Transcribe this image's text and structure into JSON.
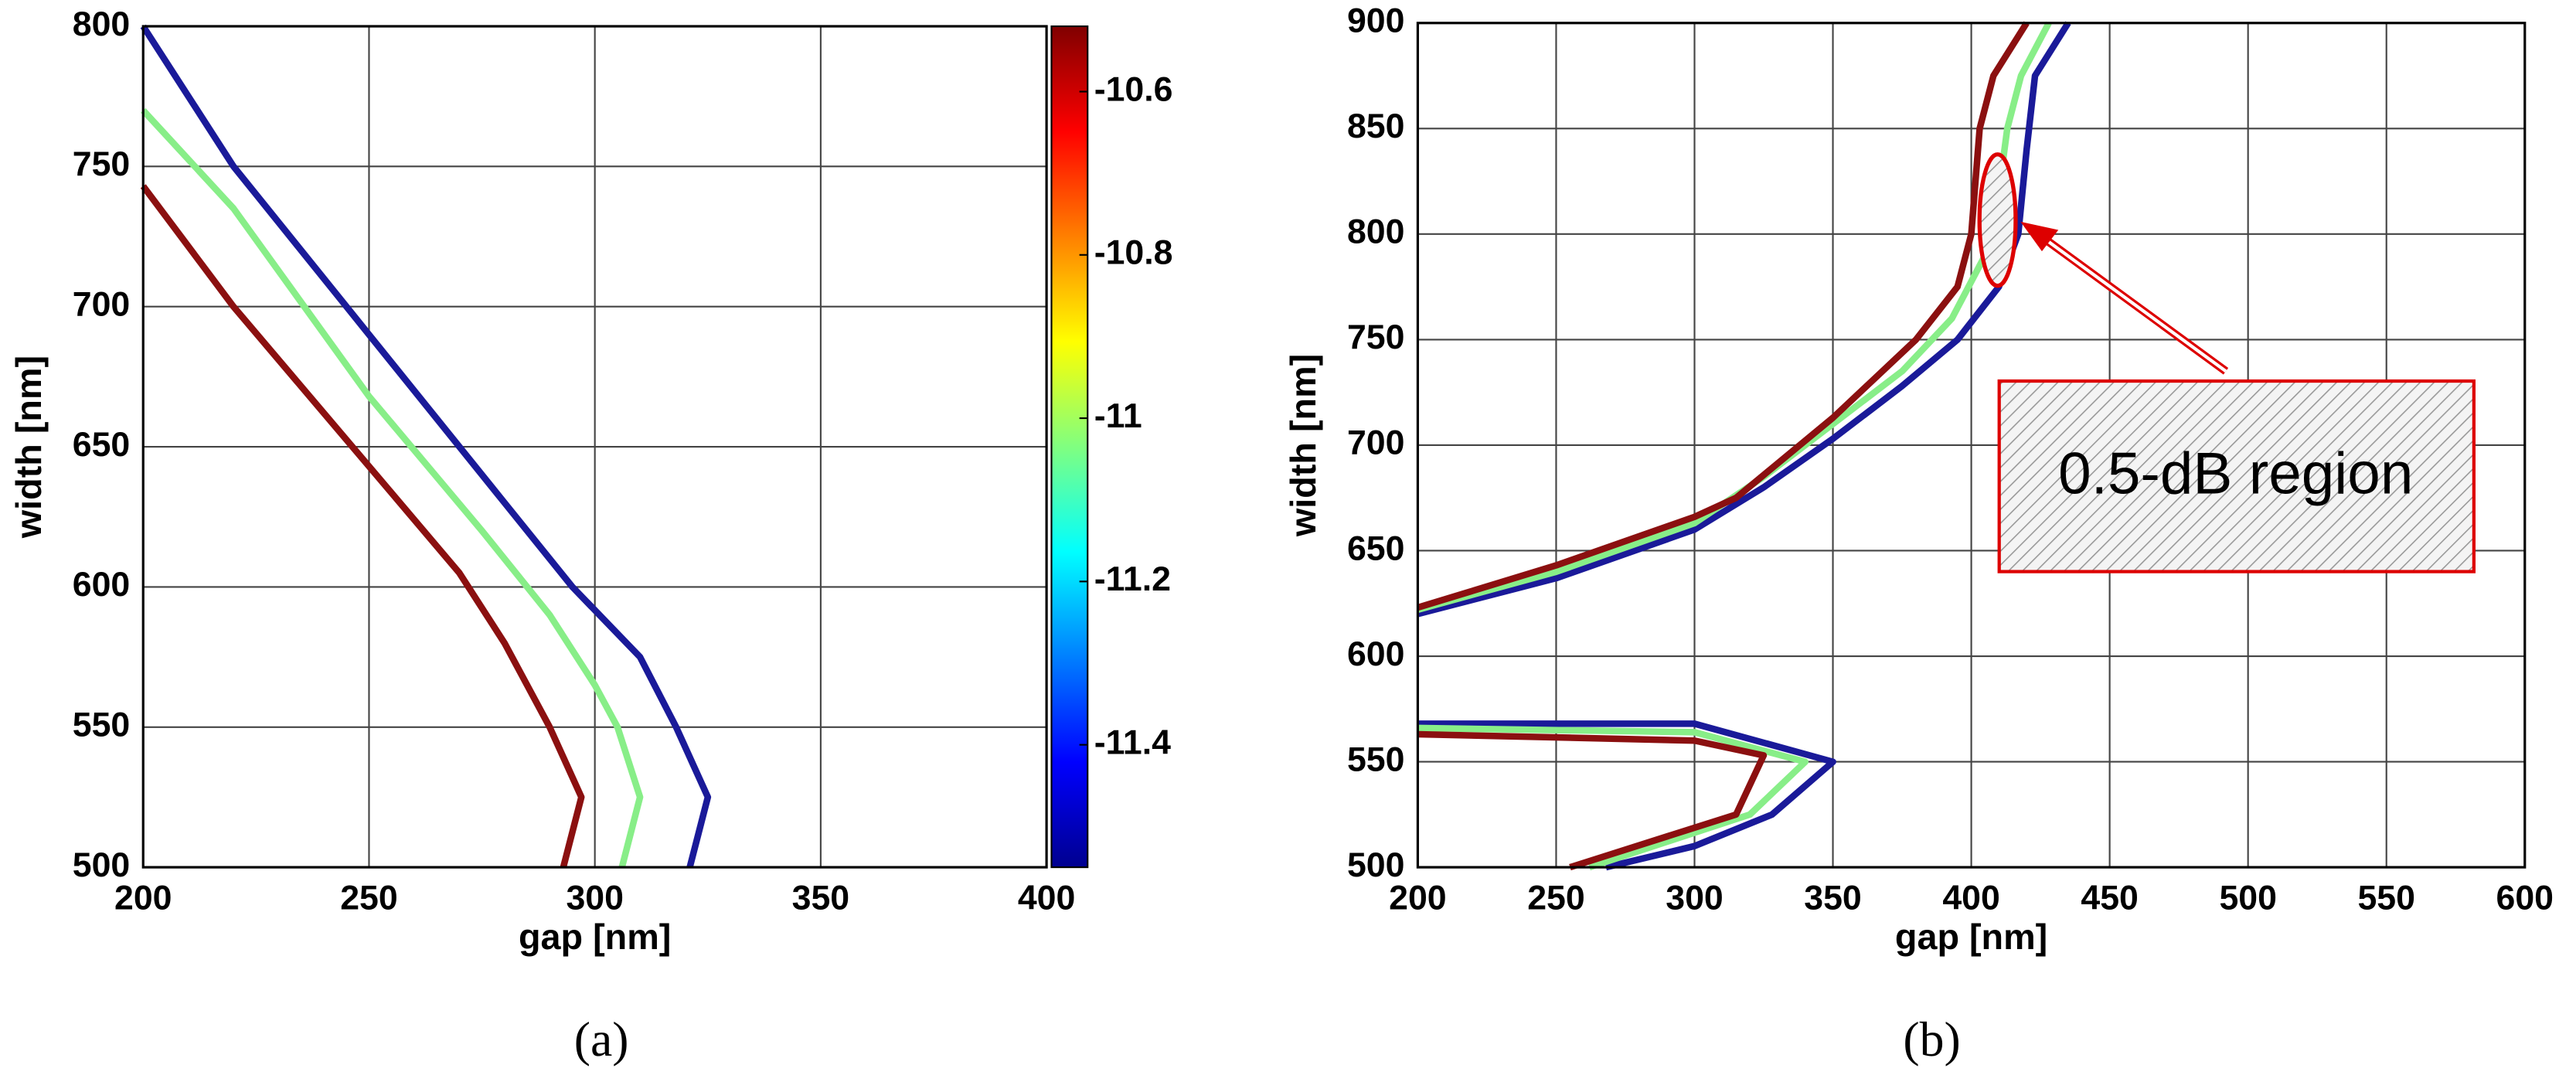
{
  "chart_data": [
    {
      "type": "line",
      "panel_label": "(a)",
      "x_label": "gap [nm]",
      "y_label": "width [nm]",
      "xlim": [
        200,
        400
      ],
      "ylim": [
        500,
        800
      ],
      "xticks": [
        200,
        250,
        300,
        350,
        400
      ],
      "yticks": [
        500,
        550,
        600,
        650,
        700,
        750,
        800
      ],
      "grid": true,
      "colorbar": {
        "lim": [
          -11.55,
          -10.52
        ],
        "ticks": [
          -10.6,
          -10.8,
          -11,
          -11.2,
          -11.4
        ]
      },
      "series": [
        {
          "color": "#1a1a99",
          "x": [
            200,
            220,
            250,
            280,
            295,
            310,
            318,
            325,
            321
          ],
          "values": [
            800,
            750,
            690,
            630,
            600,
            575,
            550,
            525,
            500
          ]
        },
        {
          "color": "#88ee88",
          "x": [
            200,
            220,
            250,
            275,
            290,
            300,
            305,
            310,
            306
          ],
          "values": [
            770,
            735,
            668,
            620,
            590,
            565,
            550,
            525,
            500
          ]
        },
        {
          "color": "#8b1010",
          "x": [
            200,
            220,
            250,
            270,
            280,
            290,
            297,
            293
          ],
          "values": [
            743,
            700,
            643,
            605,
            580,
            550,
            525,
            500
          ]
        }
      ]
    },
    {
      "type": "line",
      "panel_label": "(b)",
      "x_label": "gap [nm]",
      "y_label": "width [nm]",
      "xlim": [
        200,
        600
      ],
      "ylim": [
        500,
        900
      ],
      "xticks": [
        200,
        250,
        300,
        350,
        400,
        450,
        500,
        550,
        600
      ],
      "yticks": [
        500,
        550,
        600,
        650,
        700,
        750,
        800,
        850,
        900
      ],
      "grid": true,
      "annotation": "0.5-dB region",
      "series": [
        {
          "color": "#1a1a99",
          "x": [
            200,
            250,
            300,
            325,
            350,
            375,
            395,
            410,
            417,
            420,
            423,
            435
          ],
          "values": [
            620,
            637,
            660,
            680,
            703,
            728,
            750,
            775,
            800,
            840,
            875,
            900
          ]
        },
        {
          "color": "#88ee88",
          "x": [
            200,
            250,
            300,
            325,
            350,
            375,
            393,
            405,
            410,
            413,
            418,
            428
          ],
          "values": [
            622,
            640,
            663,
            685,
            710,
            735,
            760,
            790,
            820,
            850,
            875,
            900
          ]
        },
        {
          "color": "#8b1010",
          "x": [
            200,
            250,
            300,
            315,
            350,
            380,
            395,
            400,
            403,
            408,
            420
          ],
          "values": [
            623,
            643,
            666,
            675,
            713,
            750,
            775,
            800,
            850,
            875,
            900
          ]
        },
        {
          "color": "#1a1a99",
          "x": [
            200,
            300,
            350,
            328,
            300,
            268
          ],
          "values": [
            568,
            568,
            550,
            525,
            510,
            500
          ]
        },
        {
          "color": "#88ee88",
          "x": [
            200,
            300,
            340,
            320,
            262
          ],
          "values": [
            566,
            564,
            550,
            525,
            500
          ]
        },
        {
          "color": "#8b1010",
          "x": [
            200,
            300,
            325,
            315,
            255
          ],
          "values": [
            563,
            560,
            553,
            525,
            500
          ]
        }
      ]
    }
  ]
}
